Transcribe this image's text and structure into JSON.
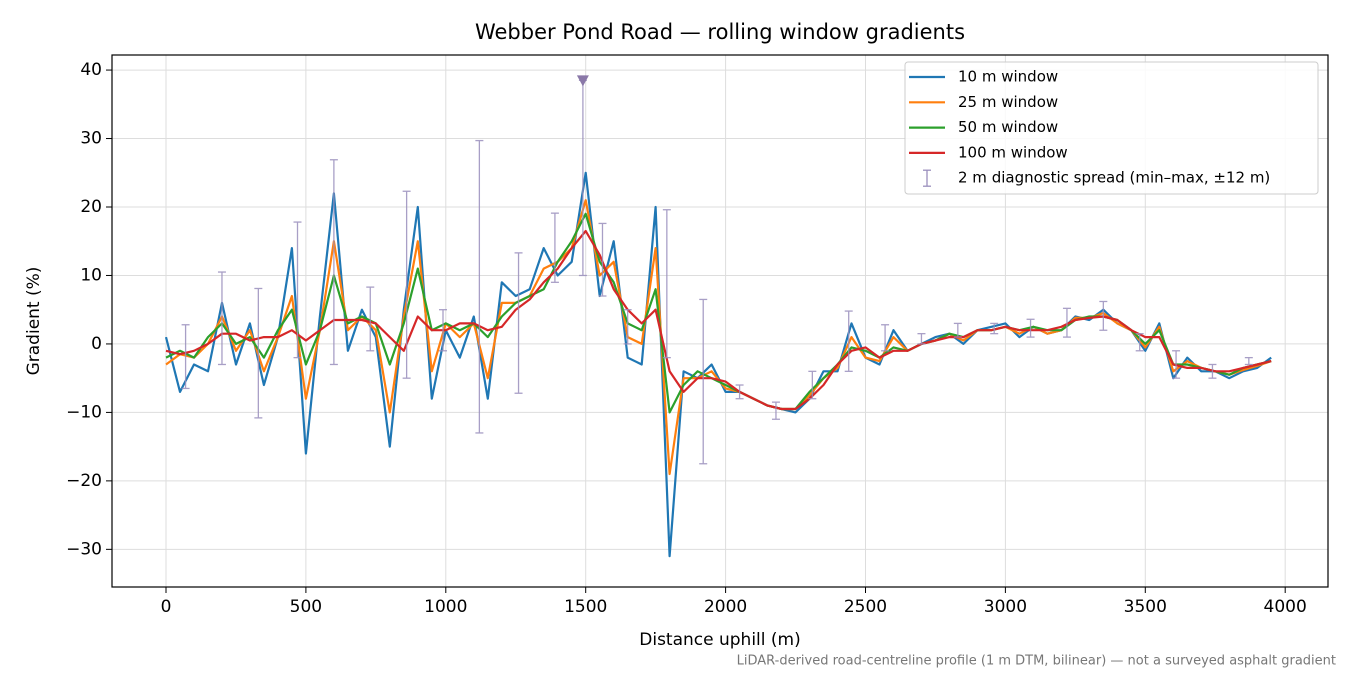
{
  "chart_data": {
    "type": "line",
    "title": "Webber Pond Road — rolling window gradients",
    "xlabel": "Distance uphill (m)",
    "ylabel": "Gradient (%)",
    "footnote": "LiDAR-derived road-centreline profile (1 m DTM, bilinear) — not a surveyed asphalt gradient",
    "xlim": [
      -193,
      4153
    ],
    "ylim": [
      -35.5,
      42.2
    ],
    "xticks": [
      0,
      500,
      1000,
      1500,
      2000,
      2500,
      3000,
      3500,
      4000
    ],
    "yticks": [
      {
        "value": -30,
        "label": "−30"
      },
      {
        "value": -20,
        "label": "−20"
      },
      {
        "value": -10,
        "label": "−10"
      },
      0,
      10,
      20,
      30,
      40
    ],
    "grid": true,
    "legend": "upper right",
    "x": [
      0,
      50,
      100,
      150,
      200,
      250,
      300,
      350,
      400,
      450,
      500,
      550,
      600,
      650,
      700,
      750,
      800,
      850,
      900,
      950,
      1000,
      1050,
      1100,
      1150,
      1200,
      1250,
      1300,
      1350,
      1400,
      1450,
      1500,
      1550,
      1600,
      1650,
      1700,
      1750,
      1800,
      1850,
      1900,
      1950,
      2000,
      2050,
      2100,
      2150,
      2200,
      2250,
      2300,
      2350,
      2400,
      2450,
      2500,
      2550,
      2600,
      2650,
      2700,
      2750,
      2800,
      2850,
      2900,
      2950,
      3000,
      3050,
      3100,
      3150,
      3200,
      3250,
      3300,
      3350,
      3400,
      3450,
      3500,
      3550,
      3600,
      3650,
      3700,
      3750,
      3800,
      3850,
      3900,
      3950
    ],
    "series": [
      {
        "name": "10 m window",
        "color": "#1f77b4",
        "values": [
          1,
          -7,
          -3,
          -4,
          6,
          -3,
          3,
          -6,
          1,
          14,
          -16,
          4,
          22,
          -1,
          5,
          1,
          -15,
          5,
          20,
          -8,
          2,
          -2,
          4,
          -8,
          9,
          7,
          8,
          14,
          10,
          12,
          25,
          7,
          15,
          -2,
          -3,
          20,
          -31,
          -4,
          -5,
          -3,
          -7,
          -7,
          -8,
          -9,
          -9.5,
          -10,
          -8,
          -4,
          -4,
          3,
          -2,
          -3,
          2,
          -1,
          0,
          1,
          1.5,
          0,
          2,
          2.5,
          3,
          1,
          2.5,
          1.5,
          2,
          4,
          3.5,
          5,
          3,
          2,
          -1,
          3,
          -5,
          -2,
          -4,
          -4,
          -5,
          -4,
          -3.5,
          -2
        ]
      },
      {
        "name": "25 m window",
        "color": "#ff7f0e",
        "values": [
          -3,
          -1.5,
          -2,
          0,
          4,
          -1,
          2,
          -4,
          1,
          7,
          -8,
          2,
          15,
          2,
          4,
          2,
          -10,
          4,
          15,
          -4,
          3,
          1,
          3,
          -5,
          6,
          6,
          7,
          11,
          12,
          14,
          21,
          10,
          12,
          1,
          0,
          14,
          -19,
          -5,
          -5,
          -4,
          -6.5,
          -7,
          -8,
          -9,
          -9.5,
          -9.5,
          -7.5,
          -5,
          -3.5,
          1,
          -2,
          -2.5,
          1,
          -1,
          0,
          0.5,
          1.5,
          0.5,
          2,
          2,
          2.5,
          1.5,
          2.5,
          1.5,
          2,
          3.8,
          3.8,
          4.5,
          3,
          2,
          -0.5,
          2.5,
          -4,
          -2.5,
          -3.5,
          -4,
          -4.5,
          -3.8,
          -3.2,
          -2.5
        ]
      },
      {
        "name": "50 m window",
        "color": "#2ca02c",
        "values": [
          -2,
          -1,
          -2,
          1,
          3,
          0,
          1,
          -2,
          2,
          5,
          -3,
          2,
          10,
          3,
          4,
          3,
          -3,
          3,
          11,
          2,
          3,
          2,
          3,
          1,
          4,
          6,
          7,
          8,
          12,
          15,
          19,
          12,
          9,
          3,
          2,
          8,
          -10,
          -6,
          -4,
          -5,
          -6,
          -7,
          -8,
          -9,
          -9.5,
          -9.5,
          -7,
          -5,
          -3,
          -0.5,
          -1,
          -2,
          -0.5,
          -1,
          0,
          0.5,
          1.5,
          1,
          2,
          2,
          2.5,
          2,
          2.5,
          2,
          2,
          3.5,
          4,
          4,
          3.5,
          2,
          0,
          2,
          -3,
          -3,
          -3.5,
          -4,
          -4.5,
          -3.5,
          -3,
          -2.5
        ]
      },
      {
        "name": "100 m window",
        "color": "#d62728",
        "values": [
          -1,
          -1.5,
          -1,
          0,
          1.5,
          1.5,
          0.5,
          1,
          1,
          2,
          0.5,
          2,
          3.5,
          3.5,
          3.5,
          3,
          1,
          -1,
          4,
          2,
          2,
          3,
          3,
          2,
          2.5,
          5,
          6.5,
          9,
          11,
          14,
          16.5,
          13,
          8,
          5,
          3,
          5,
          -4,
          -7,
          -5,
          -5,
          -5.5,
          -7,
          -8,
          -9,
          -9.5,
          -9.5,
          -8,
          -6,
          -3,
          -1,
          -0.5,
          -2,
          -1,
          -1,
          0,
          0.5,
          1,
          1,
          2,
          2,
          2.5,
          2,
          2,
          2,
          2.5,
          3.5,
          3.8,
          4,
          3.5,
          2,
          1,
          1,
          -3,
          -3.5,
          -3.5,
          -4,
          -4,
          -3.5,
          -3,
          -2.5
        ]
      }
    ],
    "errorbars": {
      "name": "2 m diagnostic spread (min–max, ±12 m)",
      "color": "#9a8fbd",
      "x": [
        70,
        200,
        330,
        470,
        600,
        730,
        860,
        990,
        1120,
        1260,
        1390,
        1490,
        1560,
        1650,
        1790,
        1920,
        2050,
        2180,
        2310,
        2440,
        2570,
        2700,
        2830,
        2960,
        3090,
        3220,
        3350,
        3480,
        3610,
        3740,
        3870
      ],
      "low": [
        -6.5,
        -3,
        -10.8,
        -2,
        -3,
        -1,
        -5,
        -1,
        -13,
        -7.2,
        9,
        10,
        7,
        0,
        -2,
        -17.5,
        -8,
        -11,
        -8,
        -4,
        -1,
        0,
        1,
        1.5,
        1,
        1,
        2,
        -1,
        -5,
        -5,
        -3
      ],
      "high": [
        2.8,
        10.5,
        8.1,
        17.8,
        26.9,
        8.3,
        22.3,
        5,
        29.7,
        13.3,
        19.1,
        38.5,
        17.6,
        5,
        19.6,
        6.5,
        -6,
        -8.5,
        -4,
        4.8,
        2.8,
        1.5,
        3,
        3,
        3.6,
        5.2,
        6.2,
        1.5,
        -1,
        -3,
        -2
      ]
    },
    "annotations": [
      {
        "x": 1490,
        "y": 38.5,
        "marker": "v"
      }
    ]
  }
}
